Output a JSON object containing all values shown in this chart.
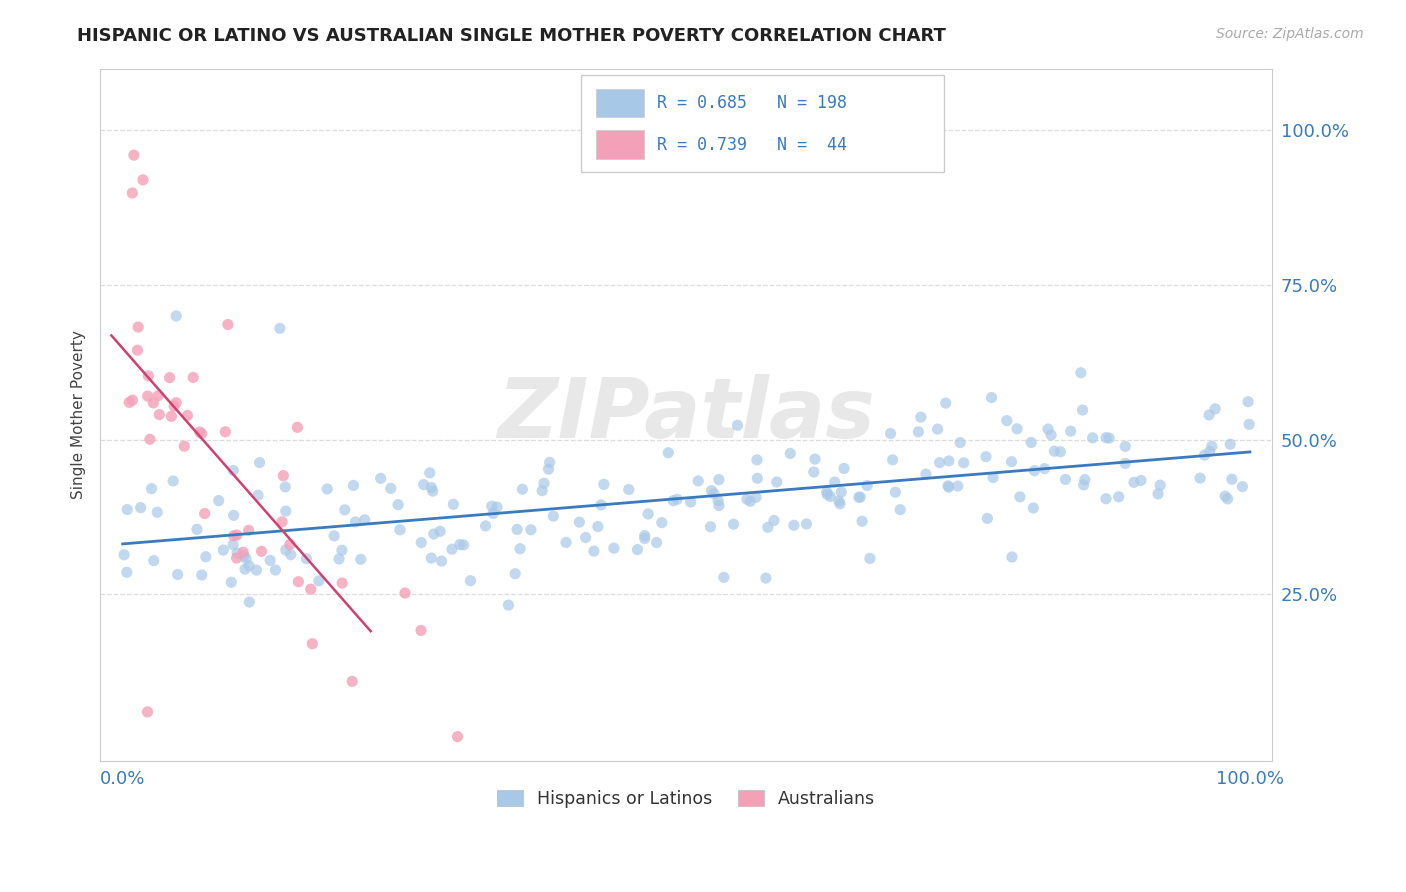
{
  "title": "HISPANIC OR LATINO VS AUSTRALIAN SINGLE MOTHER POVERTY CORRELATION CHART",
  "source": "Source: ZipAtlas.com",
  "ylabel": "Single Mother Poverty",
  "legend_label1": "Hispanics or Latinos",
  "legend_label2": "Australians",
  "R1": 0.685,
  "N1": 198,
  "R2": 0.739,
  "N2": 44,
  "watermark": "ZIPatlas",
  "blue_color": "#a8c8e8",
  "pink_color": "#f4a0b8",
  "blue_line_color": "#3a7bbf",
  "pink_line_color": "#d04070",
  "title_color": "#222222",
  "axis_label_color": "#444444",
  "legend_text_color": "#3a7bbf",
  "tick_color": "#3a7bbf",
  "grid_color": "#dddddd",
  "background_color": "#ffffff",
  "seed": 12345
}
